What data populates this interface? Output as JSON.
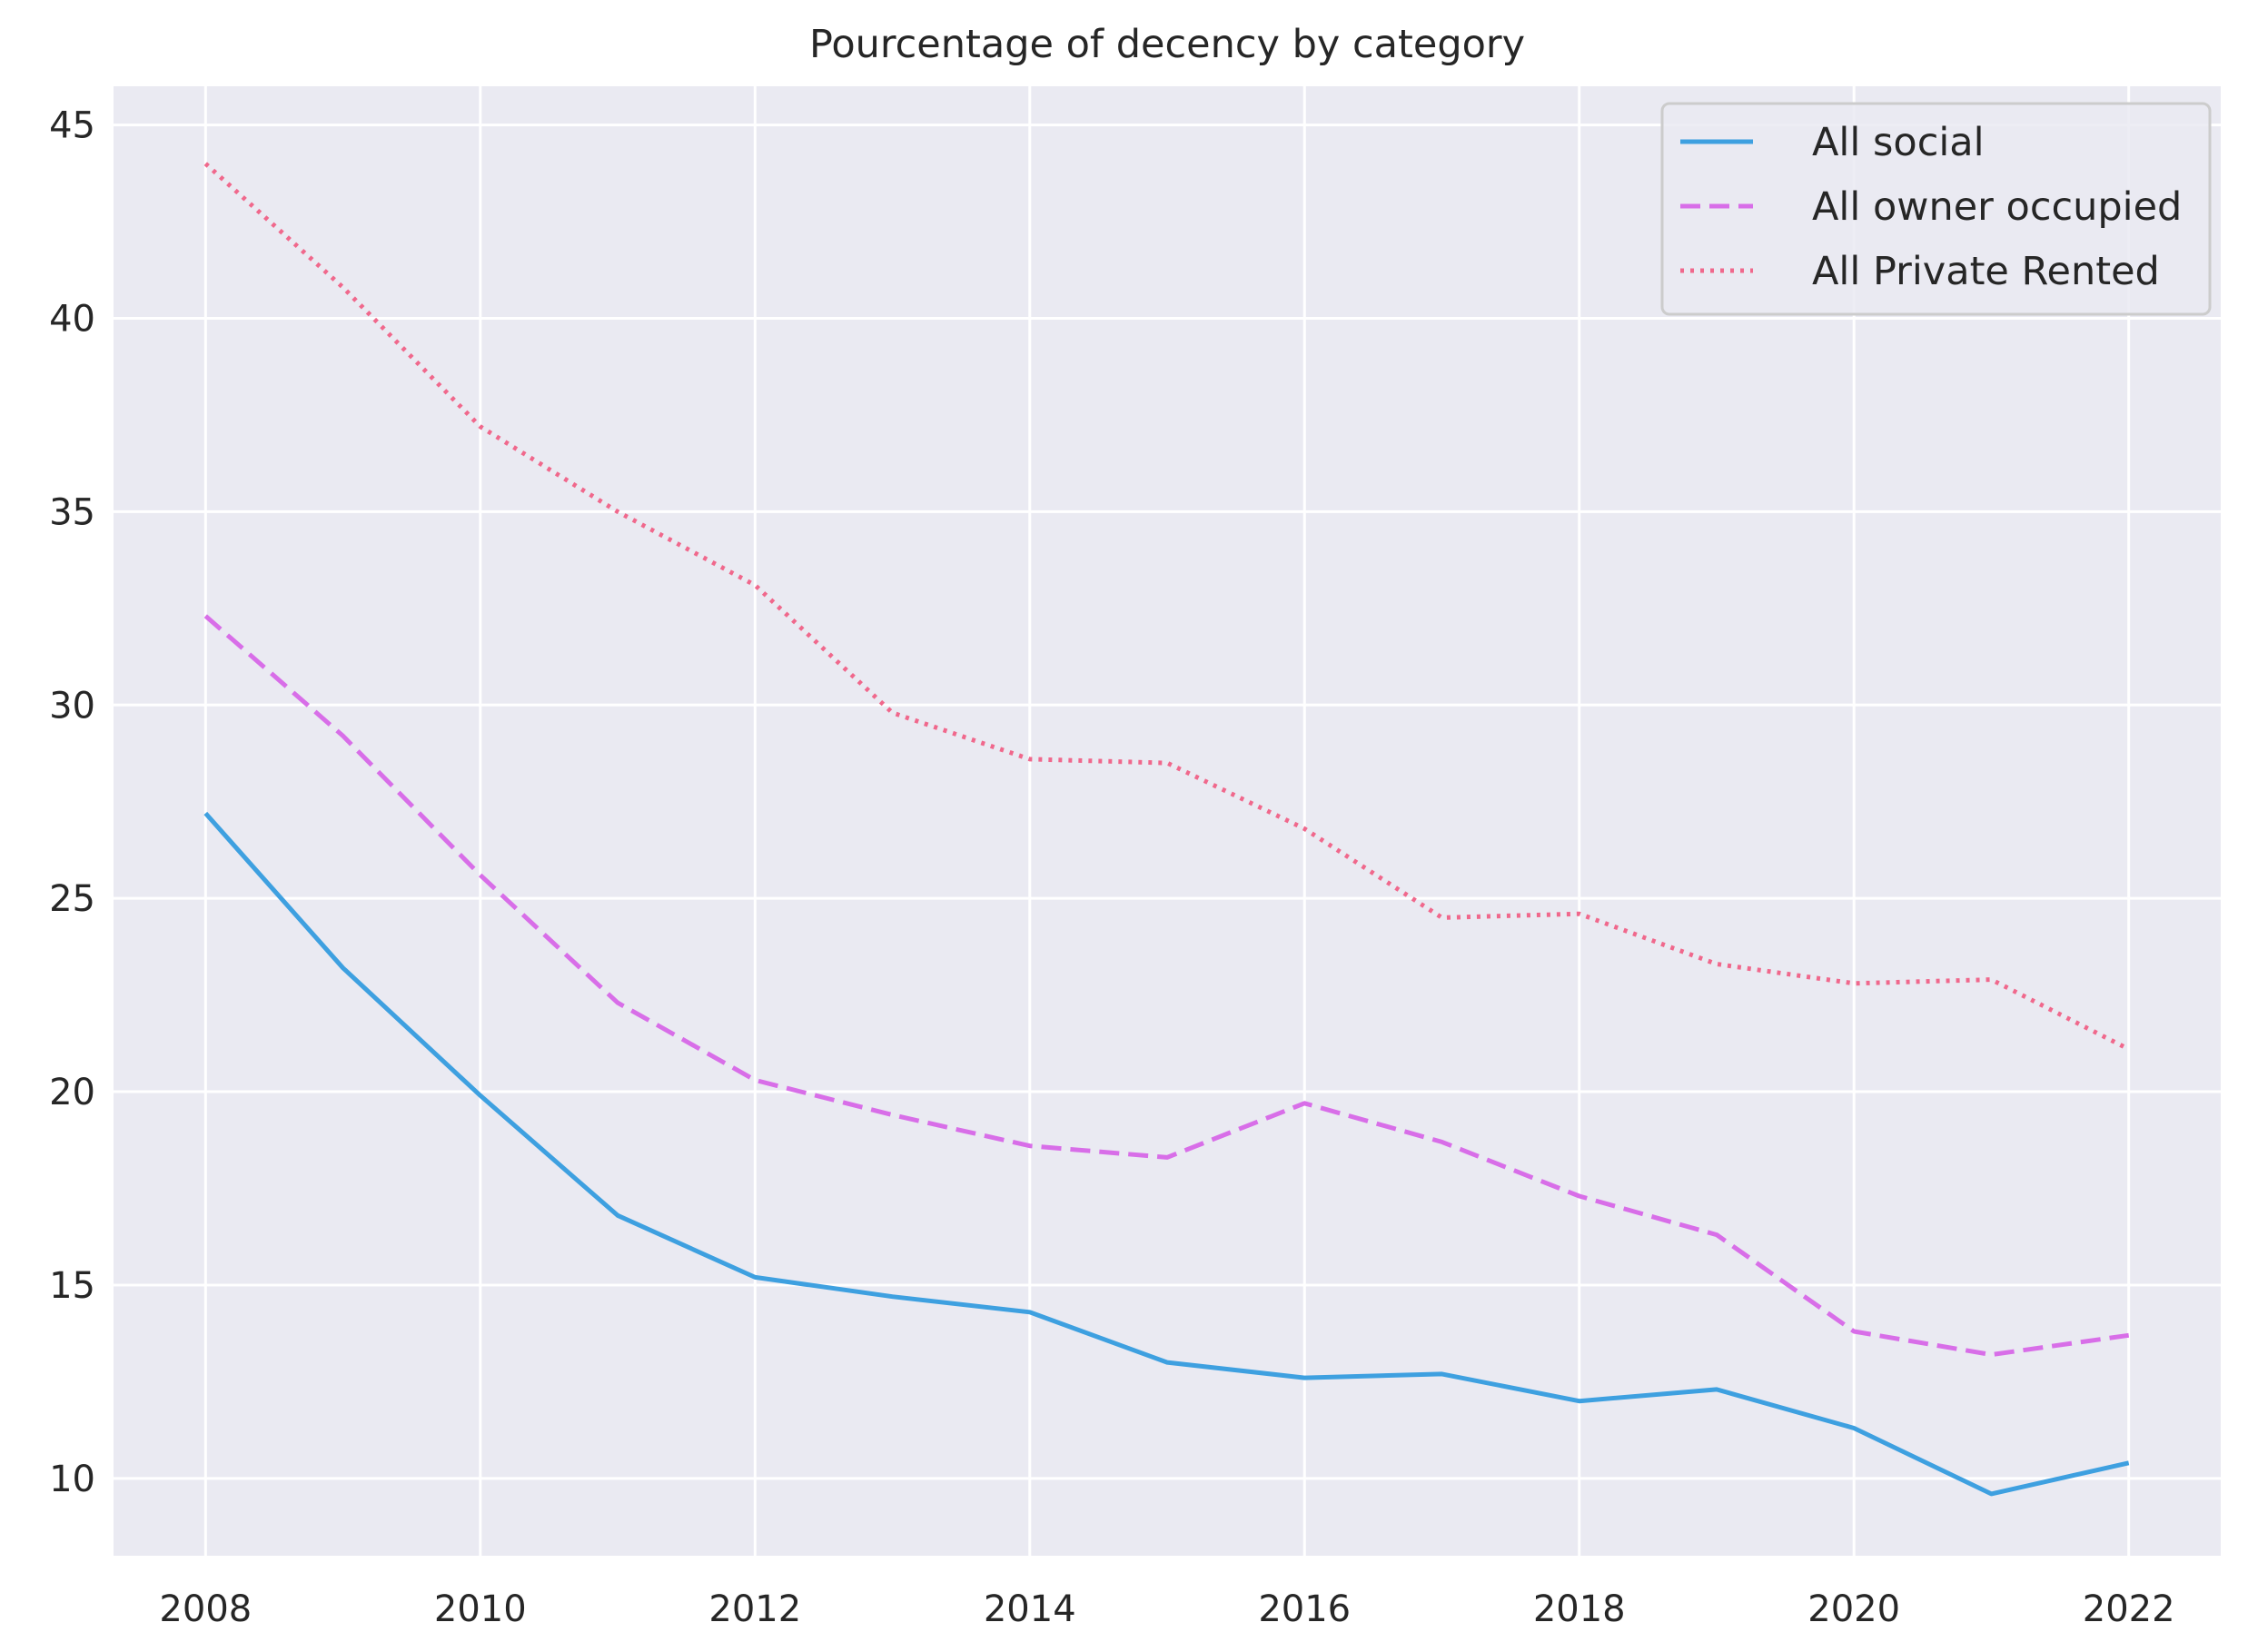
{
  "colors": {
    "background": "#eaeaf2",
    "grid": "#ffffff",
    "text": "#262626"
  },
  "chart_data": {
    "type": "line",
    "title": "Pourcentage of decency by category",
    "xlabel": "",
    "ylabel": "",
    "x": [
      2008,
      2009,
      2010,
      2011,
      2012,
      2013,
      2014,
      2015,
      2016,
      2017,
      2018,
      2019,
      2020,
      2021,
      2022
    ],
    "xlim": [
      2007.33,
      2022.67
    ],
    "ylim": [
      8.0,
      46.0
    ],
    "xticks": [
      2008,
      2010,
      2012,
      2014,
      2016,
      2018,
      2020,
      2022
    ],
    "xtick_labels": [
      "2008",
      "2010",
      "2012",
      "2014",
      "2016",
      "2018",
      "2020",
      "2022"
    ],
    "yticks": [
      10,
      15,
      20,
      25,
      30,
      35,
      40,
      45
    ],
    "ytick_labels": [
      "10",
      "15",
      "20",
      "25",
      "30",
      "35",
      "40",
      "45"
    ],
    "grid": true,
    "legend_position": "top-right",
    "series": [
      {
        "name": "All social",
        "style": "solid",
        "color": "#3ea0e0",
        "values": [
          27.2,
          23.2,
          19.9,
          16.8,
          15.2,
          14.7,
          14.3,
          13.0,
          12.6,
          12.7,
          12.0,
          12.3,
          11.3,
          9.6,
          10.4
        ]
      },
      {
        "name": "All owner occupied",
        "style": "dashed",
        "color": "#d86ee8",
        "values": [
          32.3,
          29.2,
          25.6,
          22.3,
          20.3,
          19.4,
          18.6,
          18.3,
          19.7,
          18.7,
          17.3,
          16.3,
          13.8,
          13.2,
          13.7
        ]
      },
      {
        "name": "All Private Rented",
        "style": "dotted",
        "color": "#f0688c",
        "values": [
          44.0,
          40.8,
          37.2,
          35.0,
          33.1,
          29.8,
          28.6,
          28.5,
          26.8,
          24.5,
          24.6,
          23.3,
          22.8,
          22.9,
          21.1
        ]
      }
    ]
  }
}
